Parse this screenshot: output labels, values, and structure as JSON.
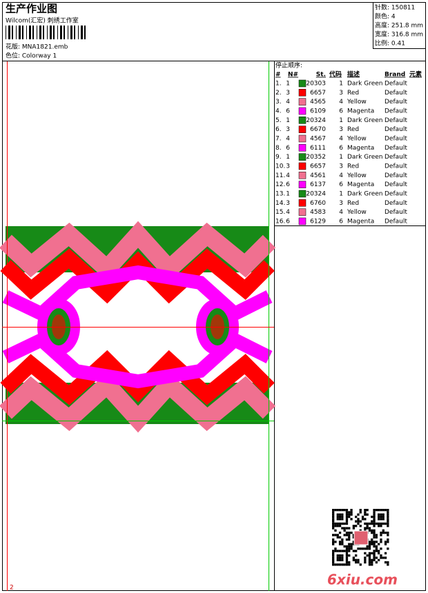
{
  "header": {
    "title": "生产作业图",
    "subtitle": "Wilcom(汇宏) 刺绣工作室",
    "design": "花版:  MNA1821.emb",
    "colorway": "色位:  Colorway 1"
  },
  "info": [
    "针数:  150811",
    "颜色:  4",
    "高度:  251.8 mm",
    "宽度:  316.8 mm",
    "比例:  0.41"
  ],
  "table": {
    "title": "停止顺序:",
    "columns": [
      "#",
      "N#",
      "St.",
      "代码",
      "描述",
      "Brand",
      "元素"
    ],
    "rows": [
      {
        "no": "1.",
        "needle": "1",
        "swatch": "#178a17",
        "stitches": "20303",
        "code": "1",
        "desc": "Dark Green",
        "brand": "Default"
      },
      {
        "no": "2.",
        "needle": "3",
        "swatch": "#ff0000",
        "stitches": "6657",
        "code": "3",
        "desc": "Red",
        "brand": "Default"
      },
      {
        "no": "3.",
        "needle": "4",
        "swatch": "#f07090",
        "stitches": "4565",
        "code": "4",
        "desc": "Yellow",
        "brand": "Default"
      },
      {
        "no": "4.",
        "needle": "6",
        "swatch": "#ff00ff",
        "stitches": "6109",
        "code": "6",
        "desc": "Magenta",
        "brand": "Default"
      },
      {
        "no": "5.",
        "needle": "1",
        "swatch": "#178a17",
        "stitches": "20324",
        "code": "1",
        "desc": "Dark Green",
        "brand": "Default"
      },
      {
        "no": "6.",
        "needle": "3",
        "swatch": "#ff0000",
        "stitches": "6670",
        "code": "3",
        "desc": "Red",
        "brand": "Default"
      },
      {
        "no": "7.",
        "needle": "4",
        "swatch": "#f07090",
        "stitches": "4567",
        "code": "4",
        "desc": "Yellow",
        "brand": "Default"
      },
      {
        "no": "8.",
        "needle": "6",
        "swatch": "#ff00ff",
        "stitches": "6111",
        "code": "6",
        "desc": "Magenta",
        "brand": "Default"
      },
      {
        "no": "9.",
        "needle": "1",
        "swatch": "#178a17",
        "stitches": "20352",
        "code": "1",
        "desc": "Dark Green",
        "brand": "Default"
      },
      {
        "no": "10.",
        "needle": "3",
        "swatch": "#ff0000",
        "stitches": "6657",
        "code": "3",
        "desc": "Red",
        "brand": "Default"
      },
      {
        "no": "11.",
        "needle": "4",
        "swatch": "#f07090",
        "stitches": "4561",
        "code": "4",
        "desc": "Yellow",
        "brand": "Default"
      },
      {
        "no": "12.",
        "needle": "6",
        "swatch": "#ff00ff",
        "stitches": "6137",
        "code": "6",
        "desc": "Magenta",
        "brand": "Default"
      },
      {
        "no": "13.",
        "needle": "1",
        "swatch": "#178a17",
        "stitches": "20324",
        "code": "1",
        "desc": "Dark Green",
        "brand": "Default"
      },
      {
        "no": "14.",
        "needle": "3",
        "swatch": "#ff0000",
        "stitches": "6760",
        "code": "3",
        "desc": "Red",
        "brand": "Default"
      },
      {
        "no": "15.",
        "needle": "4",
        "swatch": "#f07090",
        "stitches": "4583",
        "code": "4",
        "desc": "Yellow",
        "brand": "Default"
      },
      {
        "no": "16.",
        "needle": "6",
        "swatch": "#ff00ff",
        "stitches": "6129",
        "code": "6",
        "desc": "Magenta",
        "brand": "Default"
      }
    ]
  },
  "page_number": "2",
  "watermark": "6xiu.com"
}
